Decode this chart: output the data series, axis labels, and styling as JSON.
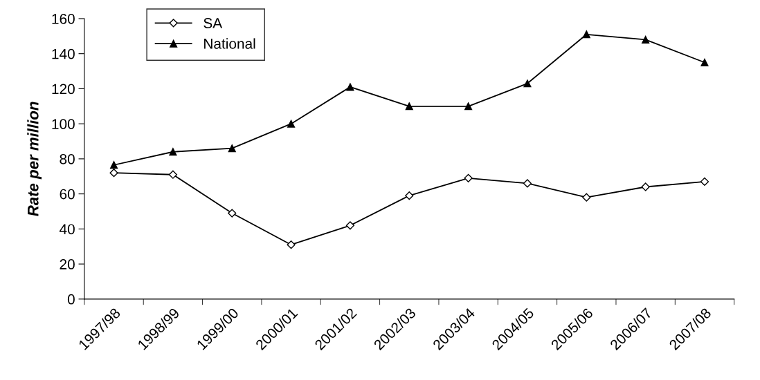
{
  "chart_data": {
    "type": "line",
    "ylabel": "Rate per million",
    "categories": [
      "1997/98",
      "1998/99",
      "1999/00",
      "2000/01",
      "2001/02",
      "2002/03",
      "2003/04",
      "2004/05",
      "2005/06",
      "2006/07",
      "2007/08"
    ],
    "series": [
      {
        "name": "SA",
        "color": "#000000",
        "marker": "diamond",
        "values": [
          72,
          71,
          49,
          31,
          42,
          59,
          69,
          66,
          58,
          64,
          67
        ]
      },
      {
        "name": "National",
        "color": "#000000",
        "marker": "triangle",
        "values": [
          76.5,
          84,
          86,
          100,
          121,
          110,
          110,
          123,
          151,
          148,
          135
        ]
      }
    ],
    "ylim": [
      0,
      160
    ],
    "yticks": [
      0,
      20,
      40,
      60,
      80,
      100,
      120,
      140,
      160
    ],
    "grid": false,
    "legend": "top left",
    "line_style": "solid"
  }
}
